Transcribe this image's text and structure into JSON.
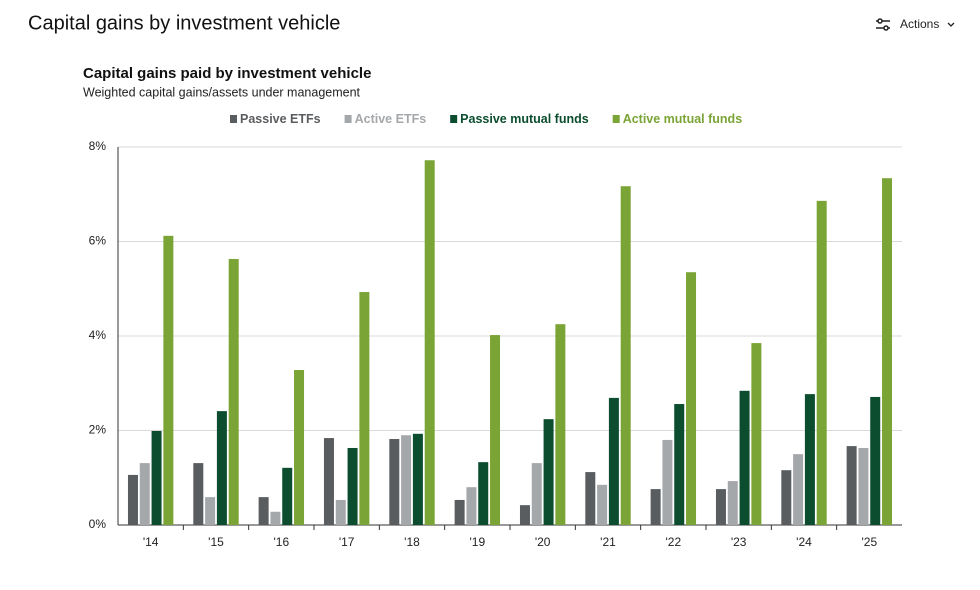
{
  "page": {
    "title": "Capital gains by investment vehicle",
    "actions": "Actions"
  },
  "chart_data": {
    "type": "bar",
    "title": "Capital gains paid by investment vehicle",
    "subtitle": "Weighted capital gains/assets under management",
    "categories": [
      "'14",
      "'15",
      "'16",
      "'17",
      "'18",
      "'19",
      "'20",
      "'21",
      "'22",
      "'23",
      "'24",
      "'25"
    ],
    "series": [
      {
        "name": "Passive ETFs",
        "color": "#5a5d60",
        "values": [
          1.06,
          1.31,
          0.59,
          1.84,
          1.82,
          0.53,
          0.42,
          1.12,
          0.76,
          0.76,
          1.16,
          1.67
        ]
      },
      {
        "name": "Active ETFs",
        "color": "#a5a8ab",
        "values": [
          1.31,
          0.59,
          0.28,
          0.53,
          1.9,
          0.8,
          1.31,
          0.85,
          1.8,
          0.93,
          1.5,
          1.63
        ]
      },
      {
        "name": "Passive mutual funds",
        "color": "#0b4d2e",
        "values": [
          1.99,
          2.41,
          1.21,
          1.63,
          1.93,
          1.33,
          2.24,
          2.69,
          2.56,
          2.84,
          2.77,
          2.71
        ]
      },
      {
        "name": "Active mutual funds",
        "color": "#7ba436",
        "values": [
          6.12,
          5.63,
          3.28,
          4.93,
          7.72,
          4.02,
          4.25,
          7.17,
          5.35,
          3.85,
          6.86,
          7.34
        ]
      }
    ],
    "ylim": [
      0,
      8
    ],
    "yticks": [
      {
        "value": 0,
        "label": "0%"
      },
      {
        "value": 2,
        "label": "2%"
      },
      {
        "value": 4,
        "label": "4%"
      },
      {
        "value": 6,
        "label": "6%"
      },
      {
        "value": 8,
        "label": "8%"
      }
    ],
    "grid": true,
    "legend": "top"
  }
}
